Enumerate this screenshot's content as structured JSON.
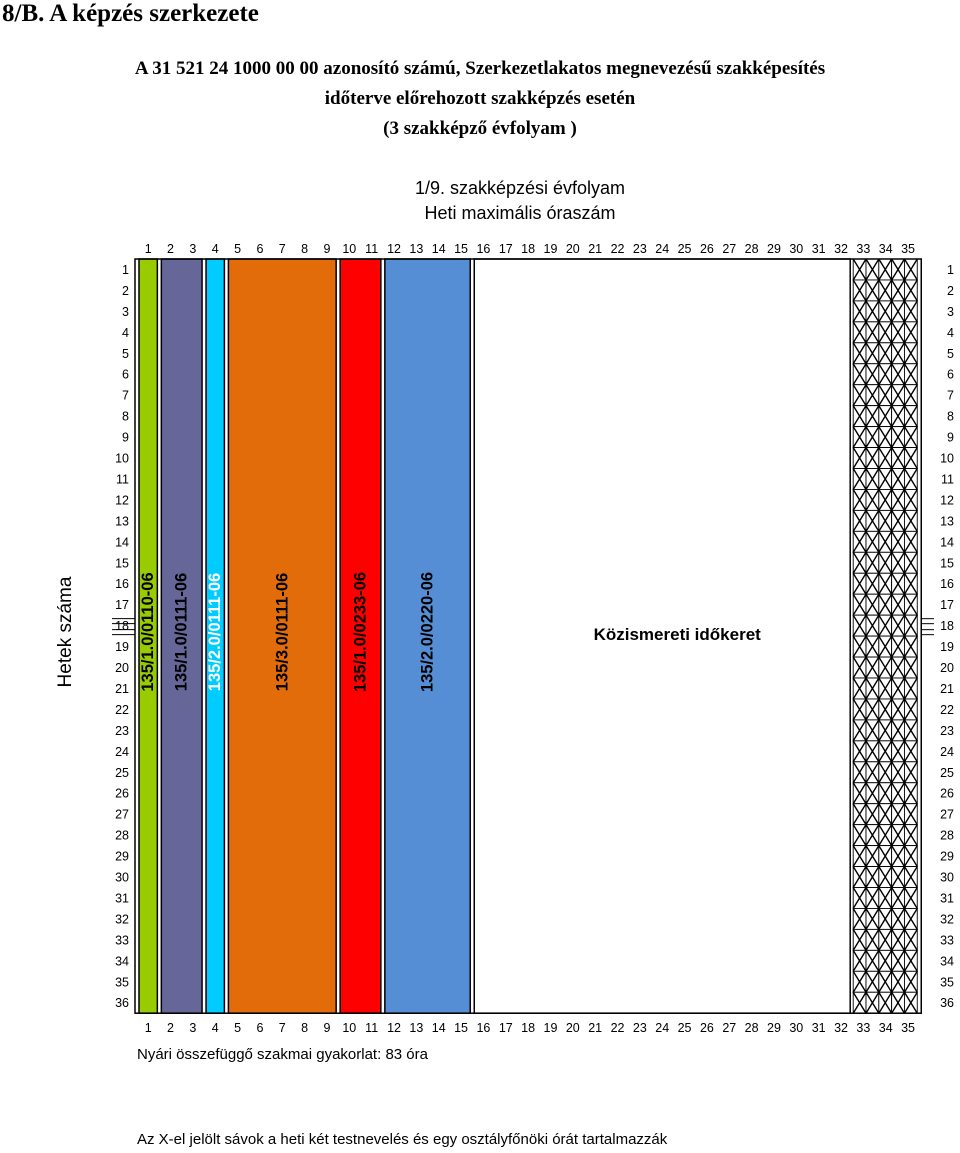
{
  "page": {
    "section_title": "8/B. A képzés szerkezete",
    "title_lines": [
      "A 31 521 24 1000 00 00 azonosító számú, Szerkezetlakatos megnevezésű szakképesítés",
      "időterve előrehozott szakképzés esetén",
      "(3 szakképző évfolyam )"
    ],
    "chart_title_1": "1/9. szakképzési évfolyam",
    "chart_title_2": "Heti maximális óraszám",
    "y_axis_label": "Hetek száma",
    "summer_note": "Nyári összefüggő szakmai gyakorlat: 83 óra",
    "footer_note": "Az X-el jelölt sávok a heti két testnevelés és egy osztályfőnöki órát tartalmazzák"
  },
  "chart_data": {
    "type": "bar",
    "x_ticks": [
      "1",
      "2",
      "3",
      "4",
      "5",
      "6",
      "7",
      "8",
      "9",
      "10",
      "11",
      "12",
      "13",
      "14",
      "15",
      "16",
      "17",
      "18",
      "19",
      "20",
      "21",
      "22",
      "23",
      "24",
      "25",
      "26",
      "27",
      "28",
      "29",
      "30",
      "31",
      "32",
      "33",
      "34",
      "35"
    ],
    "y_ticks": [
      "1",
      "2",
      "3",
      "4",
      "5",
      "6",
      "7",
      "8",
      "9",
      "10",
      "11",
      "12",
      "13",
      "14",
      "15",
      "16",
      "17",
      "18",
      "19",
      "20",
      "21",
      "22",
      "23",
      "24",
      "25",
      "26",
      "27",
      "28",
      "29",
      "30",
      "31",
      "32",
      "33",
      "34",
      "35",
      "36"
    ],
    "weeks": 36,
    "bands": [
      {
        "label": "135/1.0/0110-06",
        "start": 1,
        "end": 1,
        "color": "#99cc00"
      },
      {
        "label": "135/1.0/0111-06",
        "start": 2,
        "end": 3,
        "color": "#666699"
      },
      {
        "label": "135/2.0/0111-06",
        "start": 4,
        "end": 4,
        "color": "#00ccff"
      },
      {
        "label": "135/3.0/0111-06",
        "start": 5,
        "end": 9,
        "color": "#e36c0a"
      },
      {
        "label": "135/1.0/0233-06",
        "start": 10,
        "end": 11,
        "color": "#ff0000"
      },
      {
        "label": "135/2.0/0220-06",
        "start": 12,
        "end": 15,
        "color": "#558ed5"
      },
      {
        "label": "Közismereti időkeret",
        "start": 16,
        "end": 32,
        "color": "#ffffff"
      }
    ],
    "x_marked_hours": [
      33,
      34,
      35
    ]
  }
}
